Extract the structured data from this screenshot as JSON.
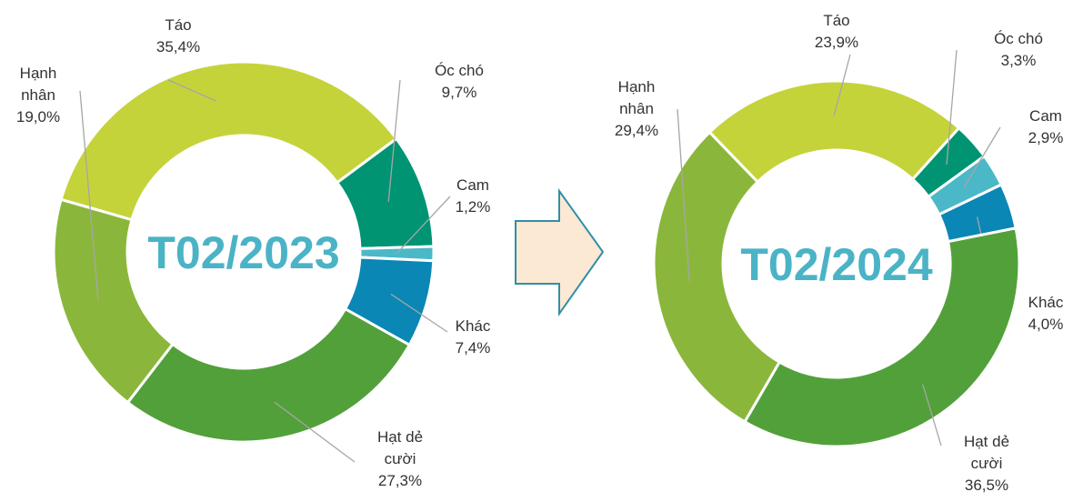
{
  "chart_data": [
    {
      "type": "donut",
      "title": "T02/2023",
      "categories": [
        "Táo",
        "Óc chó",
        "Cam",
        "Khác",
        "Hạt dẻ cười",
        "Hạnh nhân"
      ],
      "values": [
        35.4,
        9.7,
        1.2,
        7.4,
        27.3,
        19.0
      ],
      "value_labels": [
        "35,4%",
        "9,7%",
        "1,2%",
        "7,4%",
        "27,3%",
        "19,0%"
      ],
      "colors": [
        "#c5d33b",
        "#009473",
        "#4bb8c8",
        "#0a87b5",
        "#52a03a",
        "#8ab73b"
      ]
    },
    {
      "type": "donut",
      "title": "T02/2024",
      "categories": [
        "Táo",
        "Óc chó",
        "Cam",
        "Khác",
        "Hạt dẻ cười",
        "Hạnh nhân"
      ],
      "values": [
        23.9,
        3.3,
        2.9,
        4.0,
        36.5,
        29.4
      ],
      "value_labels": [
        "23,9%",
        "3,3%",
        "2,9%",
        "4,0%",
        "36,5%",
        "29,4%"
      ],
      "colors": [
        "#c5d33b",
        "#009473",
        "#4bb8c8",
        "#0a87b5",
        "#52a03a",
        "#8ab73b"
      ]
    }
  ]
}
